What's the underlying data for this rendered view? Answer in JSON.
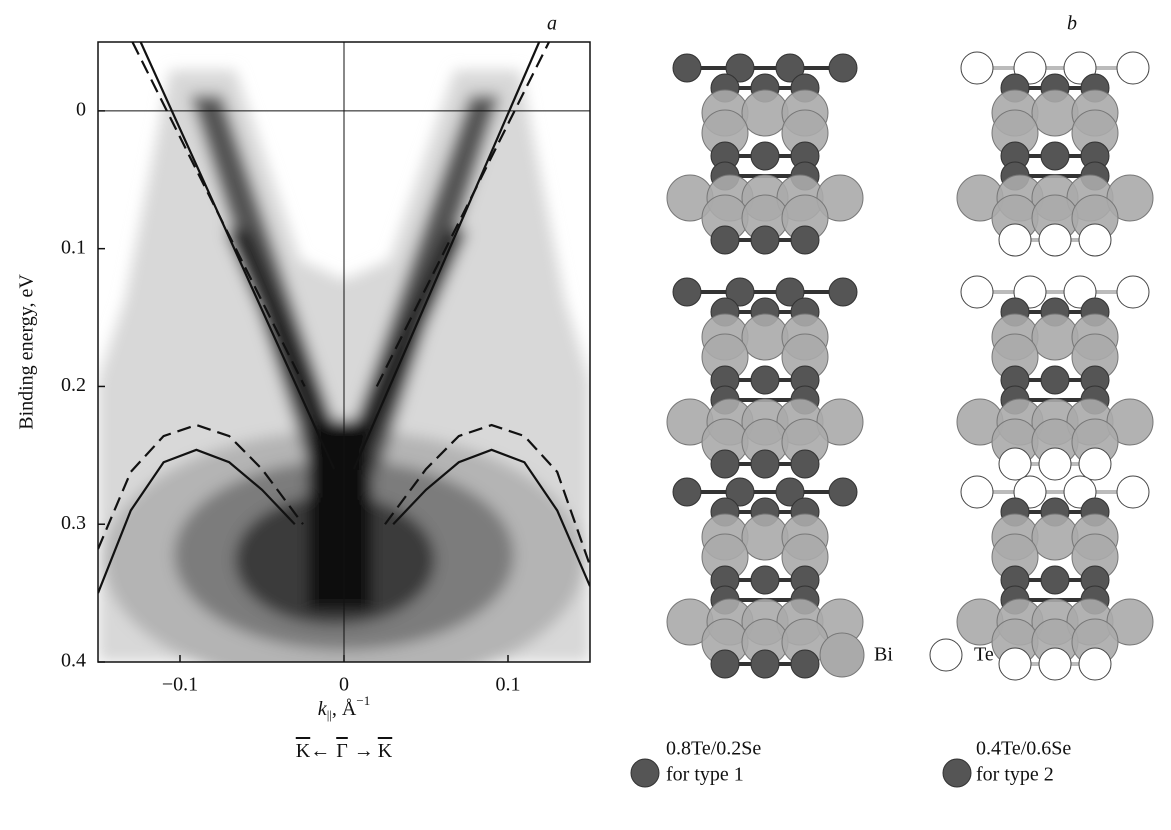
{
  "chart_data": {
    "type": "line",
    "panel_label": "a",
    "y_label": "Binding energy, eV",
    "x_label": [
      "k",
      "||",
      ", Å",
      "−1"
    ],
    "direction": [
      "K",
      "←",
      "Γ",
      "→",
      "K"
    ],
    "xlim": [
      -0.15,
      0.15
    ],
    "ylim": [
      -0.05,
      0.4
    ],
    "y_inverted": true,
    "zero_lines": true,
    "xticks": [
      {
        "value": -0.1,
        "label": "−0.1"
      },
      0,
      0.1
    ],
    "yticks": [
      0,
      0.1,
      0.2,
      0.3,
      0.4
    ],
    "series": [
      {
        "style": "solid",
        "color": "#111",
        "x": [
          -0.124,
          -0.006
        ],
        "values": [
          -0.05,
          0.26
        ]
      },
      {
        "style": "solid",
        "color": "#111",
        "x": [
          0.006,
          0.119
        ],
        "values": [
          0.26,
          -0.05
        ]
      },
      {
        "style": "dashed",
        "color": "#111",
        "x": [
          -0.129,
          -0.024
        ],
        "values": [
          -0.05,
          0.2
        ]
      },
      {
        "style": "dashed",
        "color": "#111",
        "x": [
          0.02,
          0.125
        ],
        "values": [
          0.2,
          -0.05
        ]
      },
      {
        "style": "solid",
        "color": "#111",
        "x": [
          -0.15,
          -0.13,
          -0.11,
          -0.09,
          -0.07,
          -0.05,
          -0.03
        ],
        "values": [
          0.35,
          0.29,
          0.255,
          0.246,
          0.255,
          0.275,
          0.3
        ]
      },
      {
        "style": "solid",
        "color": "#111",
        "x": [
          0.03,
          0.05,
          0.07,
          0.09,
          0.11,
          0.13,
          0.15
        ],
        "values": [
          0.3,
          0.275,
          0.255,
          0.246,
          0.255,
          0.29,
          0.345
        ]
      },
      {
        "style": "dashed",
        "color": "#111",
        "x": [
          -0.15,
          -0.13,
          -0.11,
          -0.09,
          -0.07,
          -0.05,
          -0.025
        ],
        "values": [
          0.318,
          0.262,
          0.236,
          0.228,
          0.236,
          0.26,
          0.3
        ]
      },
      {
        "style": "dashed",
        "color": "#111",
        "x": [
          0.025,
          0.05,
          0.07,
          0.09,
          0.11,
          0.13,
          0.15
        ],
        "values": [
          0.3,
          0.26,
          0.236,
          0.228,
          0.236,
          0.262,
          0.33
        ]
      }
    ]
  },
  "diagram": {
    "panel_label": "b",
    "legend": [
      {
        "label": "Bi"
      },
      {
        "label": "Te"
      },
      {
        "lines": [
          "0.8Te/0.2Se",
          "for type 1"
        ]
      },
      {
        "lines": [
          "0.4Te/0.6Se",
          "for type 2"
        ]
      }
    ]
  }
}
